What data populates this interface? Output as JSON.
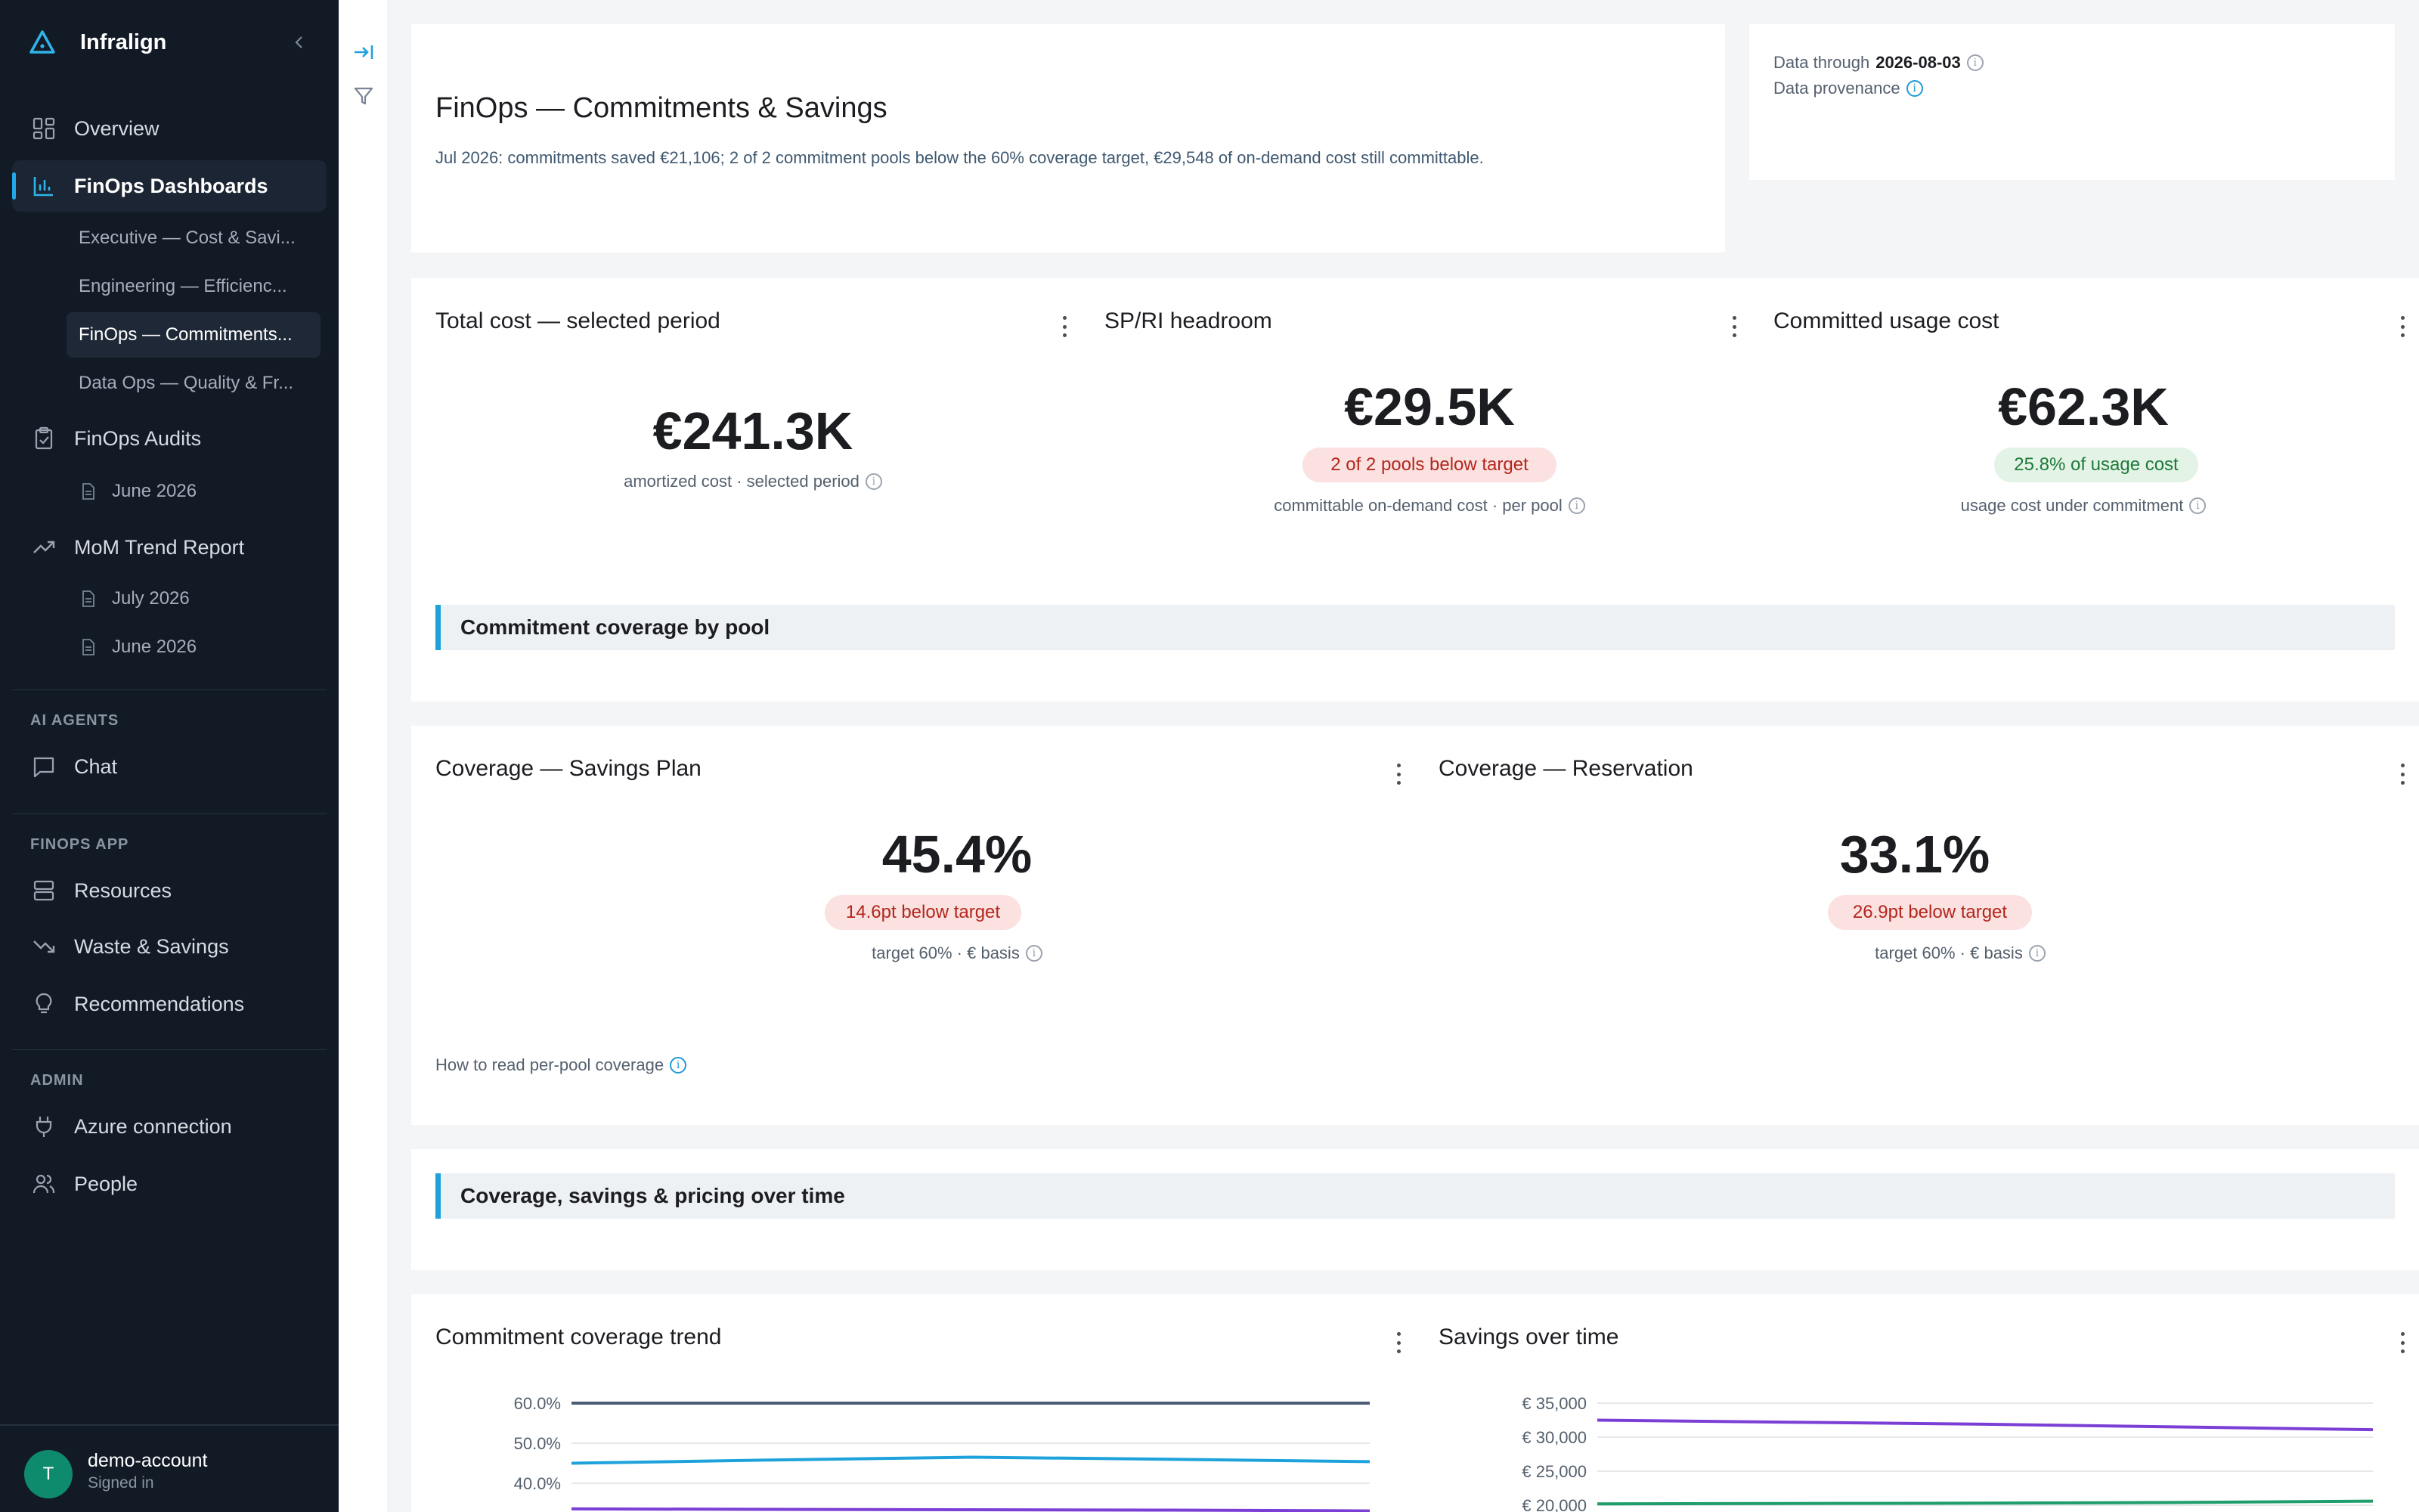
{
  "sidebar": {
    "brand": "Infralign",
    "nav": {
      "overview": "Overview",
      "finops_dashboards": "FinOps Dashboards",
      "dash_exec": "Executive — Cost & Savi...",
      "dash_eng": "Engineering — Efficienc...",
      "dash_finops": "FinOps — Commitments...",
      "dash_dataops": "Data Ops — Quality & Fr...",
      "finops_audits": "FinOps Audits",
      "audit_june": "June 2026",
      "mom_report": "MoM Trend Report",
      "mom_july": "July 2026",
      "mom_june": "June 2026",
      "chat": "Chat",
      "resources": "Resources",
      "waste": "Waste & Savings",
      "recommendations": "Recommendations",
      "azure": "Azure connection",
      "people": "People"
    },
    "sections": {
      "ai_agents": "AI AGENTS",
      "finops_app": "FINOPS APP",
      "admin": "ADMIN"
    },
    "account": {
      "initial": "T",
      "name": "demo-account",
      "status": "Signed in"
    }
  },
  "header": {
    "title": "FinOps — Commitments & Savings",
    "summary": "Jul 2026: commitments saved €21,106; 2 of 2 commitment pools below the 60% coverage target, €29,548 of on-demand cost still committable.",
    "data_through_label": "Data through",
    "data_through_date": "2026-08-03",
    "provenance_label": "Data provenance"
  },
  "kpis": {
    "total_cost": {
      "title": "Total cost — selected period",
      "value": "€241.3K",
      "sub": "amortized cost · selected period"
    },
    "headroom": {
      "title": "SP/RI headroom",
      "value": "€29.5K",
      "badge": "2 of 2 pools below target",
      "sub": "committable on-demand cost · per pool"
    },
    "committed": {
      "title": "Committed usage cost",
      "value": "€62.3K",
      "badge": "25.8% of usage cost",
      "sub": "usage cost under commitment"
    }
  },
  "sections": {
    "coverage_by_pool": "Commitment coverage by pool",
    "over_time": "Coverage, savings & pricing over time"
  },
  "coverage": {
    "savings_plan": {
      "title": "Coverage — Savings Plan",
      "value": "45.4%",
      "badge": "14.6pt below target",
      "sub": "target 60% · € basis"
    },
    "reservation": {
      "title": "Coverage — Reservation",
      "value": "33.1%",
      "badge": "26.9pt below target",
      "sub": "target 60% · € basis"
    },
    "help": "How to read per-pool coverage"
  },
  "charts_titles": {
    "coverage_trend": "Commitment coverage trend",
    "savings": "Savings over time"
  },
  "colors": {
    "accent": "#1ea2dc",
    "sidebar_bg": "#121a26",
    "red_badge": "#b3261e",
    "green_badge": "#1e7a3a"
  },
  "chart_data": [
    {
      "type": "line",
      "title": "Commitment coverage trend",
      "yticks": [
        "60.0%",
        "50.0%",
        "40.0%"
      ],
      "ylim": [
        30,
        60
      ],
      "x": [
        0,
        1,
        2,
        3,
        4
      ],
      "series": [
        {
          "values": [
            60.0,
            60.0,
            60.0,
            60.0,
            60.0
          ],
          "color": "#4b5d73"
        },
        {
          "values": [
            45.0,
            45.8,
            46.5,
            46.0,
            45.4
          ],
          "color": "#1ea2dc"
        },
        {
          "values": [
            33.6,
            33.5,
            33.4,
            33.3,
            33.1
          ],
          "color": "#7b3fd6"
        }
      ]
    },
    {
      "type": "line",
      "title": "Savings over time",
      "yticks": [
        "€ 35,000",
        "€ 30,000",
        "€ 25,000",
        "€ 20,000"
      ],
      "ylim": [
        18000,
        35000
      ],
      "x": [
        0,
        1,
        2,
        3,
        4
      ],
      "series": [
        {
          "values": [
            32500,
            32200,
            31900,
            31500,
            31100
          ],
          "color": "#7b3fd6"
        },
        {
          "values": [
            20200,
            20250,
            20300,
            20400,
            20600
          ],
          "color": "#1f9e6b"
        }
      ]
    }
  ]
}
